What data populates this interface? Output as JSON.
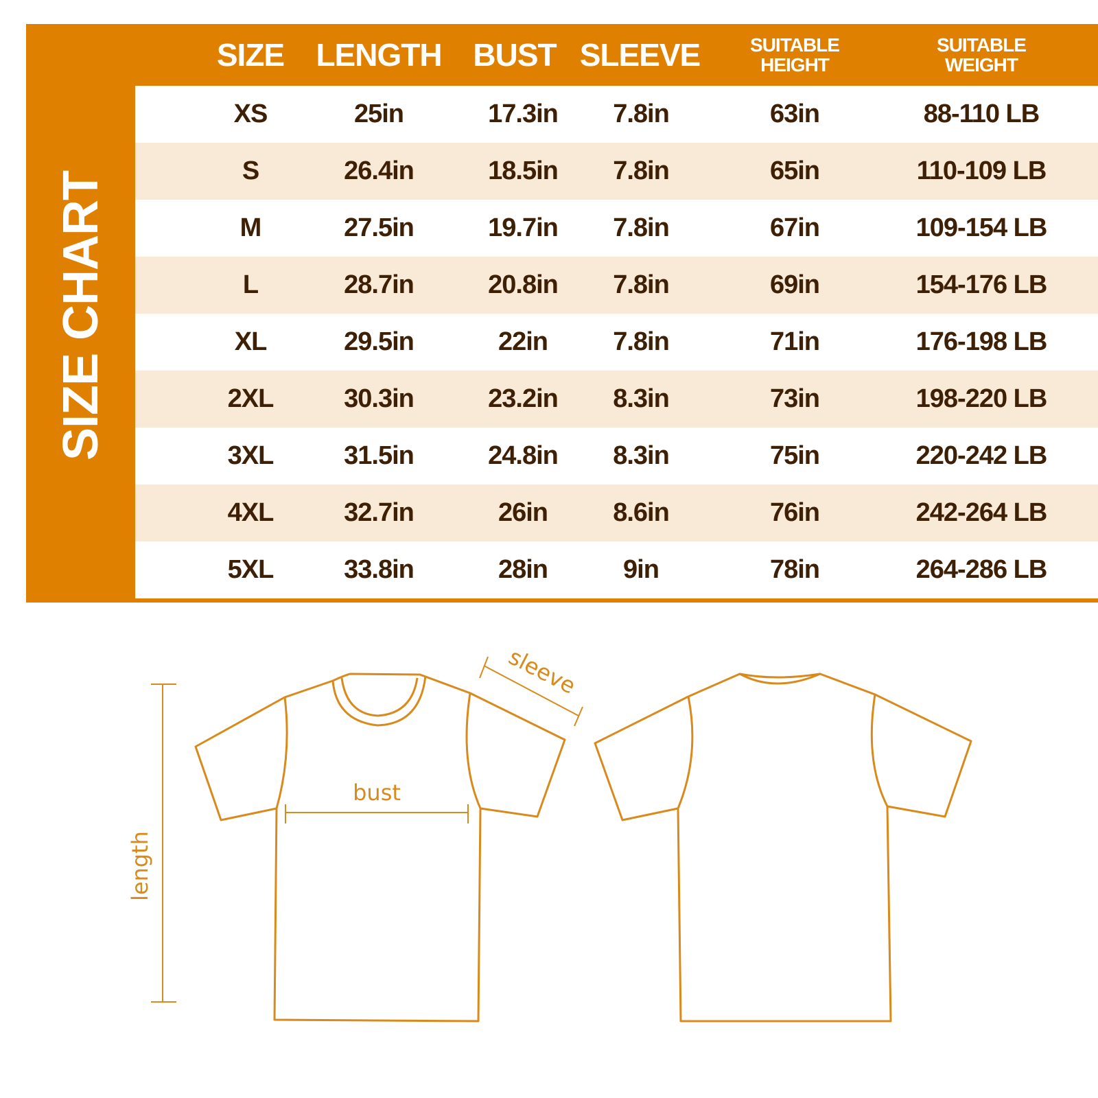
{
  "title": "SIZE CHART",
  "headers": {
    "size": "SIZE",
    "length": "LENGTH",
    "bust": "BUST",
    "sleeve": "SLEEVE",
    "height_1": "SUITABLE",
    "height_2": "HEIGHT",
    "weight_1": "SUITABLE",
    "weight_2": "WEIGHT"
  },
  "rows": [
    {
      "size": "XS",
      "length": "25in",
      "bust": "17.3in",
      "sleeve": "7.8in",
      "height": "63in",
      "weight": "88-110 LB"
    },
    {
      "size": "S",
      "length": "26.4in",
      "bust": "18.5in",
      "sleeve": "7.8in",
      "height": "65in",
      "weight": "110-109 LB"
    },
    {
      "size": "M",
      "length": "27.5in",
      "bust": "19.7in",
      "sleeve": "7.8in",
      "height": "67in",
      "weight": "109-154 LB"
    },
    {
      "size": "L",
      "length": "28.7in",
      "bust": "20.8in",
      "sleeve": "7.8in",
      "height": "69in",
      "weight": "154-176 LB"
    },
    {
      "size": "XL",
      "length": "29.5in",
      "bust": "22in",
      "sleeve": "7.8in",
      "height": "71in",
      "weight": "176-198 LB"
    },
    {
      "size": "2XL",
      "length": "30.3in",
      "bust": "23.2in",
      "sleeve": "8.3in",
      "height": "73in",
      "weight": "198-220 LB"
    },
    {
      "size": "3XL",
      "length": "31.5in",
      "bust": "24.8in",
      "sleeve": "8.3in",
      "height": "75in",
      "weight": "220-242 LB"
    },
    {
      "size": "4XL",
      "length": "32.7in",
      "bust": "26in",
      "sleeve": "8.6in",
      "height": "76in",
      "weight": "242-264 LB"
    },
    {
      "size": "5XL",
      "length": "33.8in",
      "bust": "28in",
      "sleeve": "9in",
      "height": "78in",
      "weight": "264-286 LB"
    }
  ],
  "diagram": {
    "sleeve": "sleeve",
    "bust": "bust",
    "length": "length"
  },
  "colors": {
    "accent": "#e08000",
    "alt_row": "#f9ead8",
    "text": "#3d2005",
    "line": "#d98a1c"
  }
}
